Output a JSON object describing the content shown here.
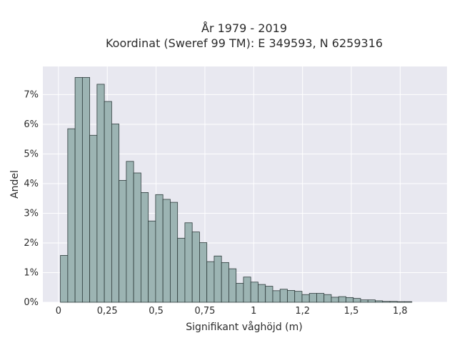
{
  "chart_data": {
    "type": "bar",
    "title_line1": "År 1979 - 2019",
    "title_line2": "Koordinat (Sweref 99 TM): E 349593, N 6259316",
    "xlabel": "Signifikant våghöjd (m)",
    "ylabel": "Andel",
    "xlim": [
      -0.08,
      1.99
    ],
    "ylim": [
      0,
      0.0795
    ],
    "x_ticks": [
      0,
      0.25,
      0.5,
      0.75,
      1,
      1.25,
      1.5,
      1.75
    ],
    "x_tick_labels": [
      "0",
      "0,25",
      "0,5",
      "0,75",
      "1",
      "1,2",
      "1,5",
      "1,8"
    ],
    "y_ticks": [
      0,
      0.01,
      0.02,
      0.03,
      0.04,
      0.05,
      0.06,
      0.07
    ],
    "y_tick_labels": [
      "0%",
      "1%",
      "2%",
      "3%",
      "4%",
      "5%",
      "6%",
      "7%"
    ],
    "grid": true,
    "bin_start": 0.01,
    "bin_width": 0.0375,
    "values": [
      0.0158,
      0.0585,
      0.0758,
      0.0758,
      0.0563,
      0.0735,
      0.0677,
      0.0601,
      0.0411,
      0.0475,
      0.0436,
      0.037,
      0.0274,
      0.0363,
      0.0347,
      0.0337,
      0.0216,
      0.0268,
      0.0237,
      0.0201,
      0.0137,
      0.0156,
      0.0134,
      0.0113,
      0.0064,
      0.0085,
      0.0068,
      0.006,
      0.0054,
      0.0039,
      0.0044,
      0.004,
      0.0037,
      0.0026,
      0.003,
      0.003,
      0.0026,
      0.0017,
      0.0019,
      0.0016,
      0.0013,
      0.0008,
      0.0008,
      0.0005,
      0.0003,
      0.0003,
      0.0002,
      0.0002
    ]
  },
  "colors": {
    "plot_background": "#e8e8f0",
    "bar_fill": "#9cb4b3",
    "bar_edge": "#2e3b3b",
    "grid": "#ffffff"
  }
}
